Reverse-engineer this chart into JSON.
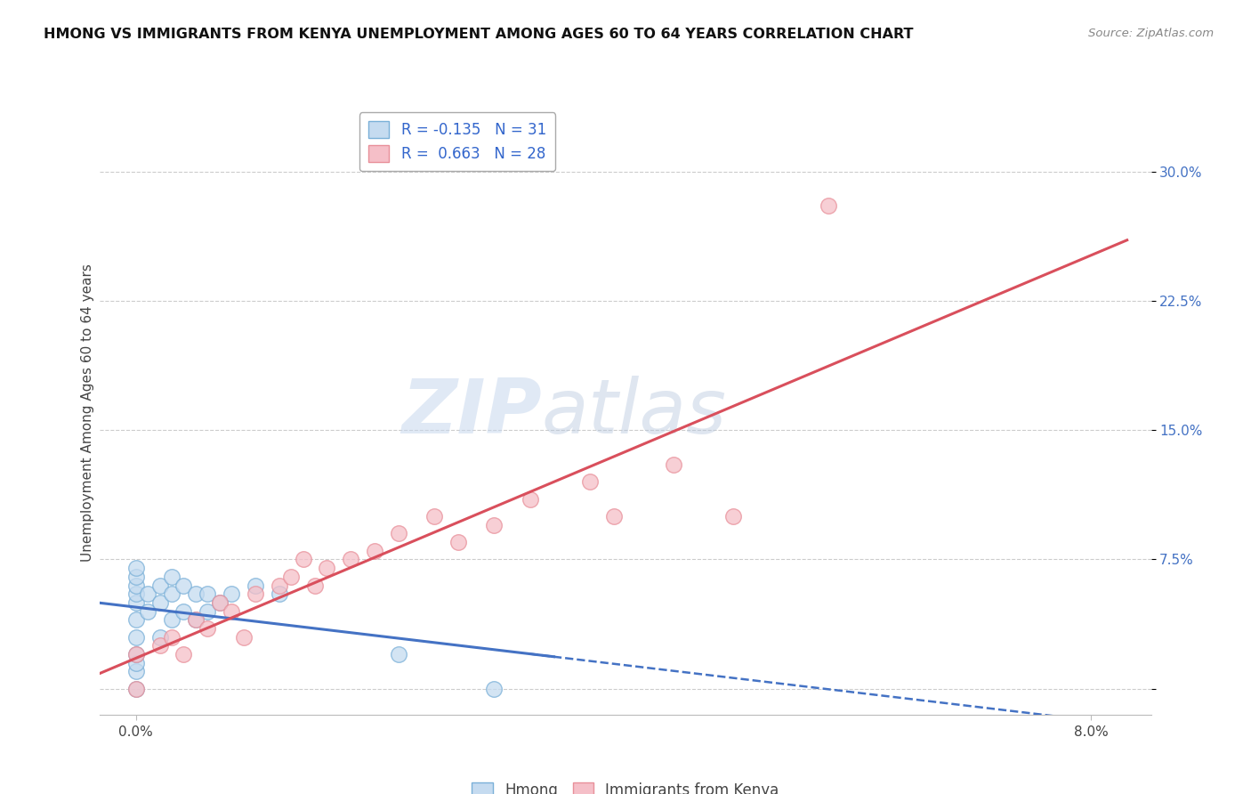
{
  "title": "HMONG VS IMMIGRANTS FROM KENYA UNEMPLOYMENT AMONG AGES 60 TO 64 YEARS CORRELATION CHART",
  "source": "Source: ZipAtlas.com",
  "ylabel": "Unemployment Among Ages 60 to 64 years",
  "y_ticks": [
    0.0,
    0.075,
    0.15,
    0.225,
    0.3
  ],
  "y_tick_labels": [
    "",
    "7.5%",
    "15.0%",
    "22.5%",
    "30.0%"
  ],
  "xlim": [
    -0.003,
    0.085
  ],
  "ylim": [
    -0.015,
    0.335
  ],
  "legend_hmong_R": "-0.135",
  "legend_hmong_N": "31",
  "legend_kenya_R": "0.663",
  "legend_kenya_N": "28",
  "watermark_zip": "ZIP",
  "watermark_atlas": "atlas",
  "hmong_fill_color": "#c5dbf0",
  "hmong_edge_color": "#7ab0d8",
  "kenya_fill_color": "#f5bfc8",
  "kenya_edge_color": "#e8909a",
  "hmong_line_color": "#4472c4",
  "kenya_line_color": "#d94f5c",
  "background_color": "#ffffff",
  "grid_color": "#cccccc",
  "hmong_scatter_x": [
    0.0,
    0.0,
    0.0,
    0.0,
    0.0,
    0.0,
    0.0,
    0.0,
    0.0,
    0.0,
    0.0,
    0.001,
    0.001,
    0.002,
    0.002,
    0.002,
    0.003,
    0.003,
    0.003,
    0.004,
    0.004,
    0.005,
    0.005,
    0.006,
    0.006,
    0.007,
    0.008,
    0.01,
    0.012,
    0.022,
    0.03
  ],
  "hmong_scatter_y": [
    0.0,
    0.01,
    0.015,
    0.02,
    0.03,
    0.04,
    0.05,
    0.055,
    0.06,
    0.065,
    0.07,
    0.045,
    0.055,
    0.03,
    0.05,
    0.06,
    0.04,
    0.055,
    0.065,
    0.045,
    0.06,
    0.04,
    0.055,
    0.045,
    0.055,
    0.05,
    0.055,
    0.06,
    0.055,
    0.02,
    0.0
  ],
  "kenya_scatter_x": [
    0.0,
    0.0,
    0.002,
    0.003,
    0.004,
    0.005,
    0.006,
    0.007,
    0.008,
    0.009,
    0.01,
    0.012,
    0.013,
    0.014,
    0.015,
    0.016,
    0.018,
    0.02,
    0.022,
    0.025,
    0.027,
    0.03,
    0.033,
    0.038,
    0.04,
    0.045,
    0.05,
    0.058
  ],
  "kenya_scatter_y": [
    0.0,
    0.02,
    0.025,
    0.03,
    0.02,
    0.04,
    0.035,
    0.05,
    0.045,
    0.03,
    0.055,
    0.06,
    0.065,
    0.075,
    0.06,
    0.07,
    0.075,
    0.08,
    0.09,
    0.1,
    0.085,
    0.095,
    0.11,
    0.12,
    0.1,
    0.13,
    0.1,
    0.28
  ]
}
